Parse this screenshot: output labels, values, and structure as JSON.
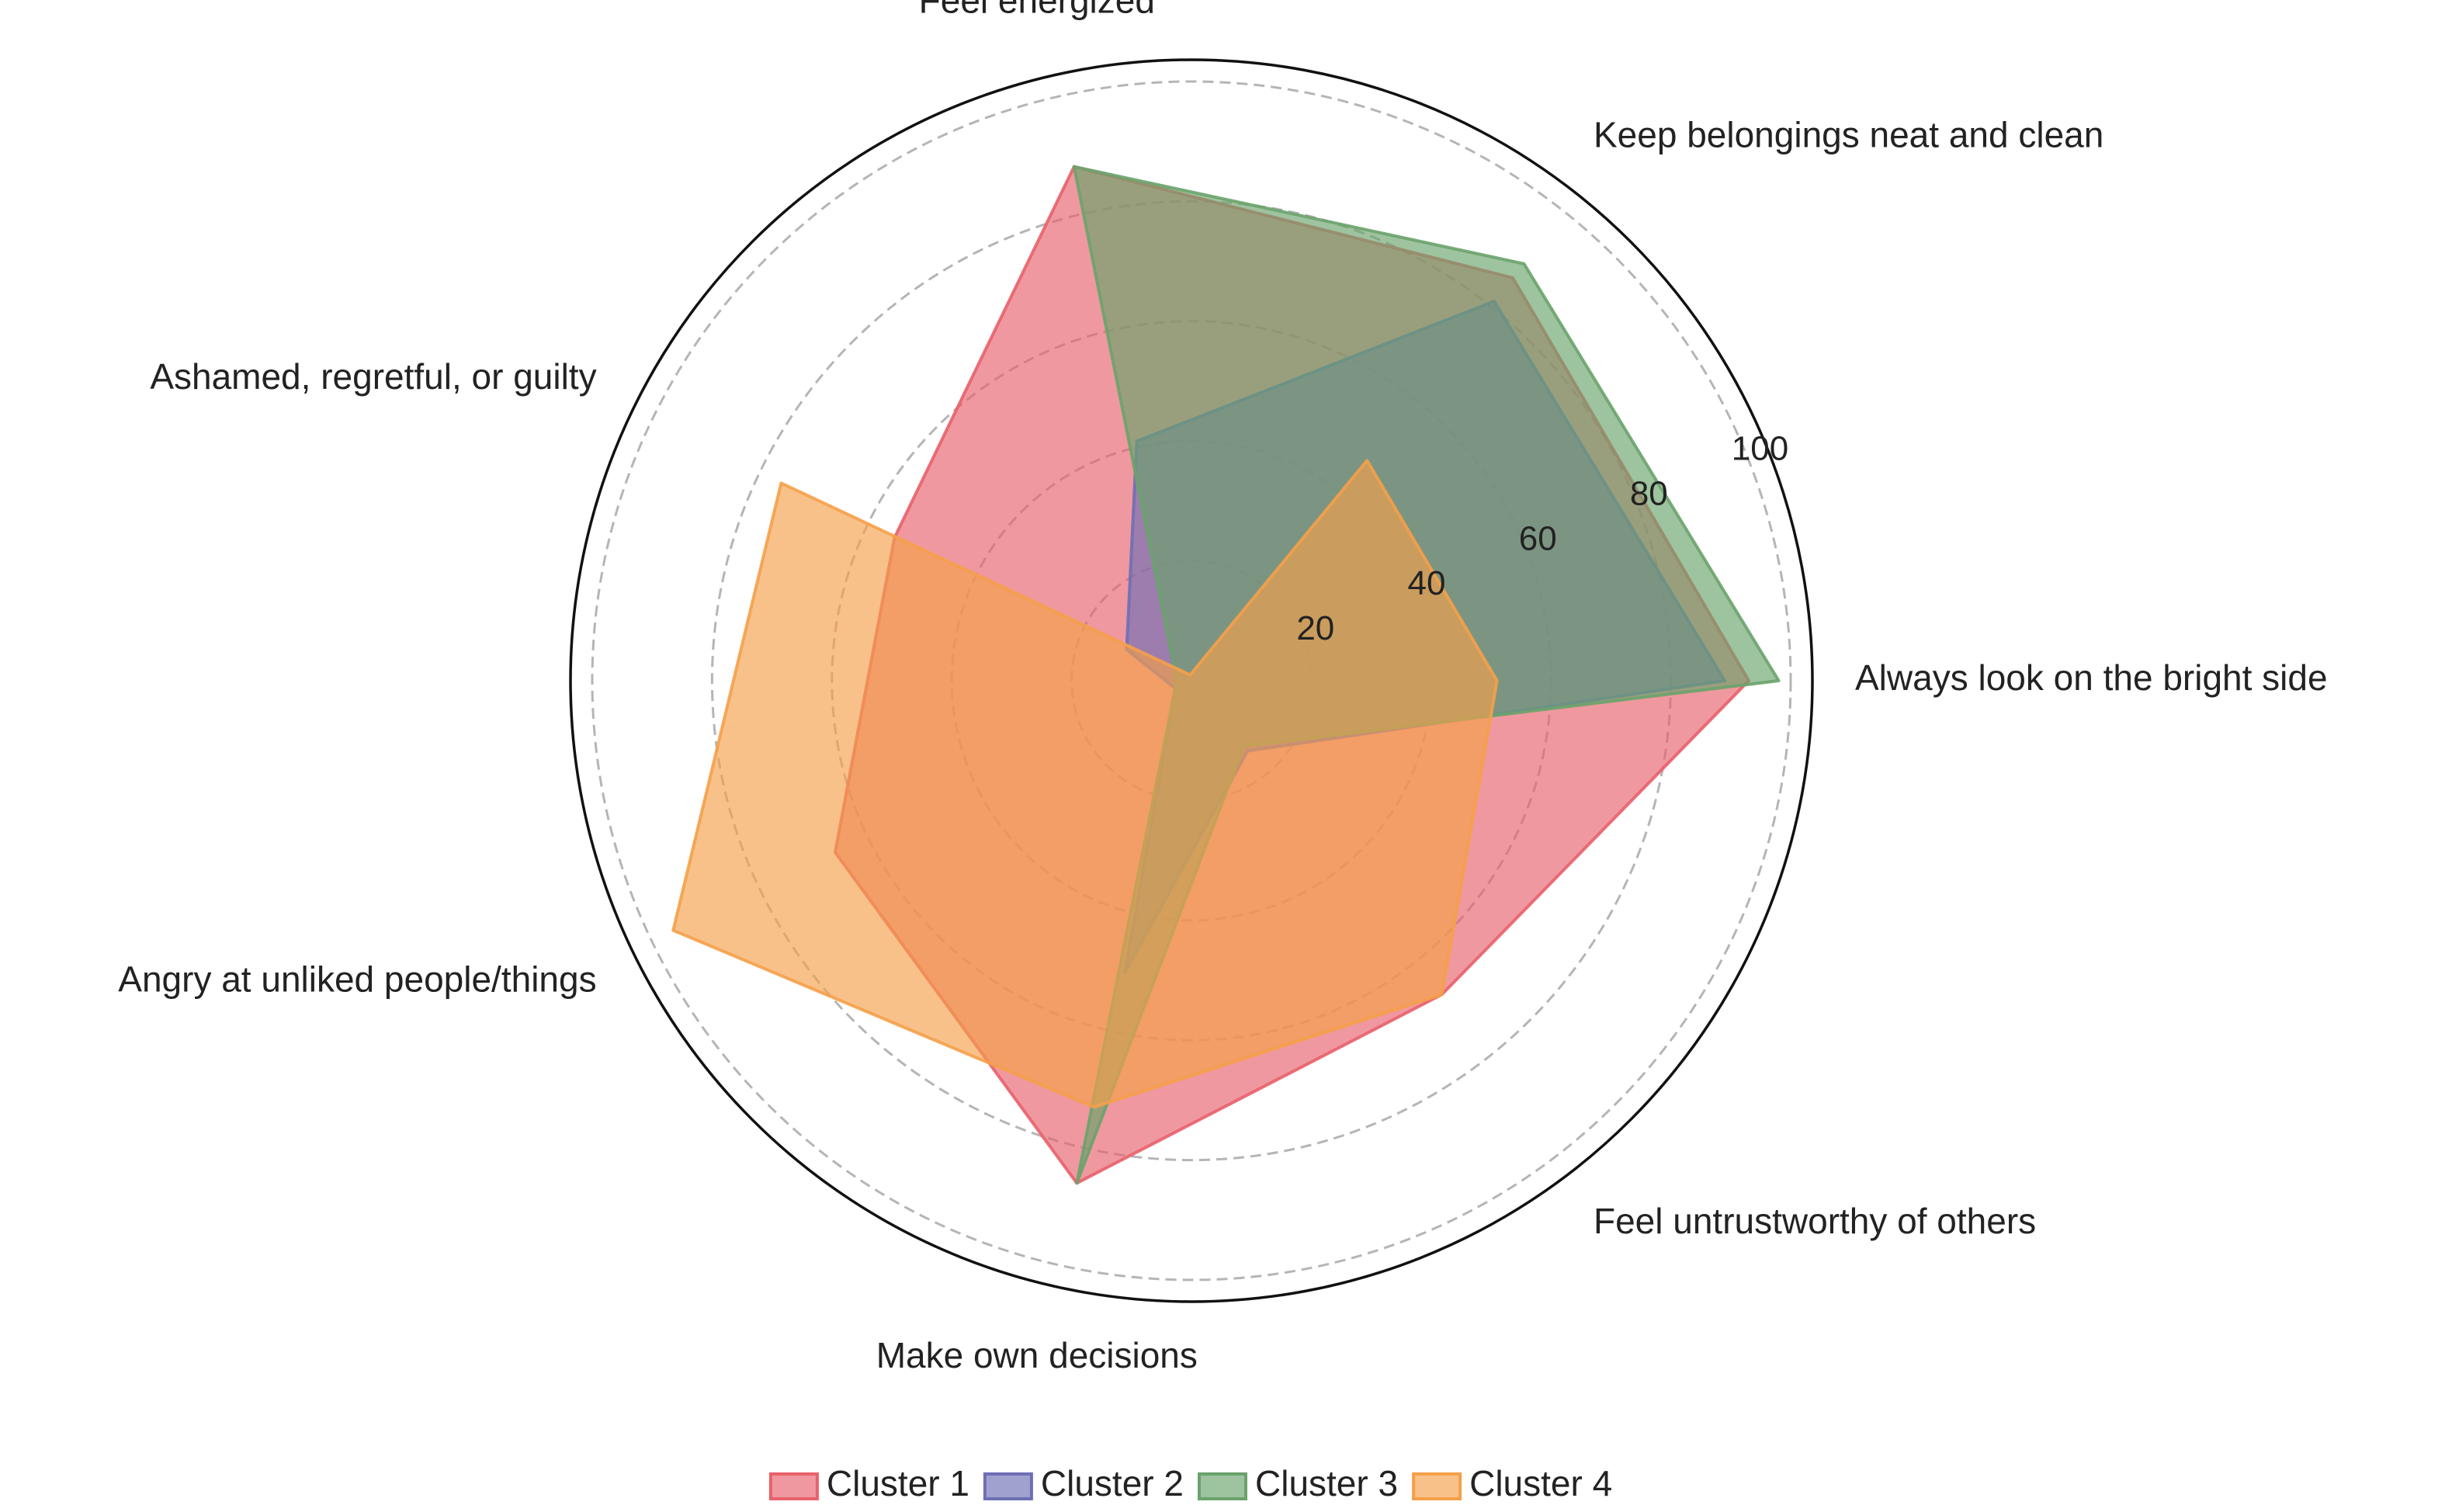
{
  "chart_data": {
    "type": "radar",
    "title": "",
    "axes": [
      "Always look on the bright side",
      "Keep belongings neat and clean",
      "Feel energized",
      "Ashamed, regretful, or guilty",
      "Angry at unliked people/things",
      "Make own decisions",
      "Feel untrustworthy of others"
    ],
    "r_ticks": [
      20,
      40,
      60,
      80,
      100
    ],
    "rlim": [
      0,
      100
    ],
    "grid": true,
    "legend_position": "bottom",
    "series": [
      {
        "name": "Cluster 1",
        "color": "#e8616b",
        "values": [
          93,
          86,
          88,
          55,
          66,
          86,
          67
        ]
      },
      {
        "name": "Cluster 2",
        "color": "#6e6fb5",
        "values": [
          89,
          81,
          41,
          12,
          3,
          50,
          15
        ]
      },
      {
        "name": "Cluster 3",
        "color": "#6aa36c",
        "values": [
          98,
          89,
          88,
          3,
          3,
          86,
          14
        ]
      },
      {
        "name": "Cluster 4",
        "color": "#f5a04a",
        "values": [
          51,
          47,
          1,
          76,
          96,
          73,
          67
        ]
      }
    ]
  }
}
